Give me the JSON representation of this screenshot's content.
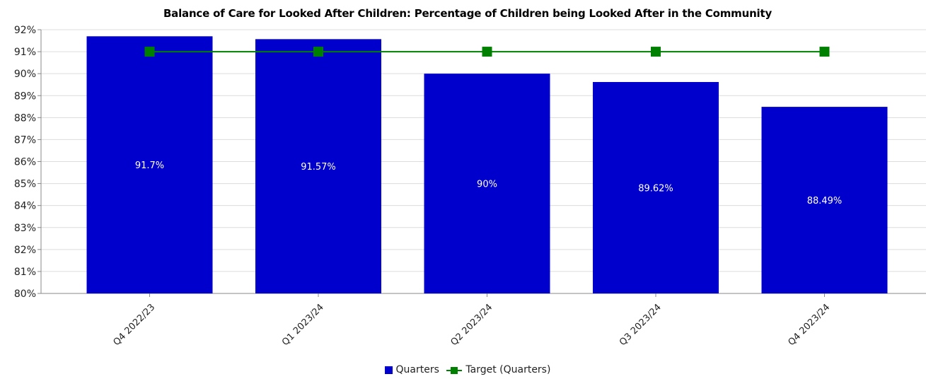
{
  "chart_data": {
    "type": "bar",
    "title": "Balance of Care for Looked After Children: Percentage of Children being Looked After in the Community",
    "xlabel": "",
    "ylabel": "",
    "categories": [
      "Q4 2022/23",
      "Q1 2023/24",
      "Q2 2023/24",
      "Q3 2023/24",
      "Q4 2023/24"
    ],
    "series": [
      {
        "name": "Quarters",
        "type": "bar",
        "color": "#0000cc",
        "values": [
          91.7,
          91.57,
          90,
          89.62,
          88.49
        ],
        "labels": [
          "91.7%",
          "91.57%",
          "90%",
          "89.62%",
          "88.49%"
        ]
      },
      {
        "name": "Target (Quarters)",
        "type": "line",
        "color": "#008000",
        "values": [
          91,
          91,
          91,
          91,
          91
        ]
      }
    ],
    "ylim": [
      80,
      92
    ],
    "yticks": [
      "80%",
      "81%",
      "82%",
      "83%",
      "84%",
      "85%",
      "86%",
      "87%",
      "88%",
      "89%",
      "90%",
      "91%",
      "92%"
    ],
    "grid": true,
    "legend_position": "bottom"
  }
}
